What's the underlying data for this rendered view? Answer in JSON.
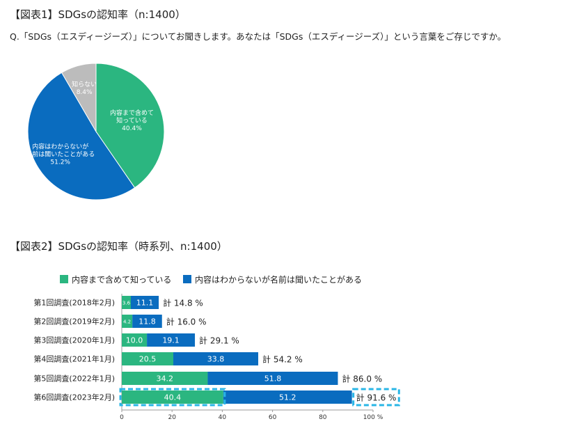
{
  "figure1": {
    "title": "【図表1】SDGsの認知率（n:1400）",
    "question": "Q.「SDGs（エスディージーズ）」についてお聞きします。あなたは「SDGs（エスディージーズ）」という言葉をご存じですか。"
  },
  "figure2": {
    "title": "【図表2】SDGsの認知率（時系列、n:1400）"
  },
  "colors": {
    "green": "#2bb680",
    "blue": "#0a6cbf",
    "gray": "#bcbcbc",
    "highlight": "#29b6e6"
  },
  "chart_data": [
    {
      "type": "pie",
      "slices": [
        {
          "label_lines": [
            "内容まで含めて",
            "知っている"
          ],
          "pct_label": "40.4%",
          "value": 40.4,
          "color": "#2bb680"
        },
        {
          "label_lines": [
            "内容はわからないが",
            "名前は聞いたことがある"
          ],
          "pct_label": "51.2%",
          "value": 51.2,
          "color": "#0a6cbf"
        },
        {
          "label_lines": [
            "知らない"
          ],
          "pct_label": "8.4%",
          "value": 8.4,
          "color": "#bcbcbc"
        }
      ]
    },
    {
      "type": "bar",
      "orientation": "horizontal",
      "stacked": true,
      "categories": [
        "第1回調査(2018年2月)",
        "第2回調査(2019年2月)",
        "第3回調査(2020年1月)",
        "第4回調査(2021年1月)",
        "第5回調査(2022年1月)",
        "第6回調査(2023年2月)"
      ],
      "series": [
        {
          "name": "内容まで含めて知っている",
          "color": "#2bb680",
          "values": [
            3.6,
            4.2,
            10.0,
            20.5,
            34.2,
            40.4
          ],
          "labels": [
            "3.6",
            "4.2",
            "10.0",
            "20.5",
            "34.2",
            "40.4"
          ]
        },
        {
          "name": "内容はわからないが名前は聞いたことがある",
          "color": "#0a6cbf",
          "values": [
            11.1,
            11.8,
            19.1,
            33.8,
            51.8,
            51.2
          ],
          "labels": [
            "11.1",
            "11.8",
            "19.1",
            "33.8",
            "51.8",
            "51.2"
          ]
        }
      ],
      "totals": [
        "計 14.8 %",
        "計 16.0 %",
        "計 29.1 %",
        "計 54.2 %",
        "計 86.0 %",
        "計 91.6 %"
      ],
      "highlight_index": 5,
      "xlim": [
        0,
        100
      ],
      "xticks": [
        0,
        20,
        40,
        60,
        80,
        100
      ],
      "xtick_labels": [
        "0",
        "20",
        "40",
        "60",
        "80",
        "100 %"
      ],
      "legend_position": "top-left"
    }
  ]
}
